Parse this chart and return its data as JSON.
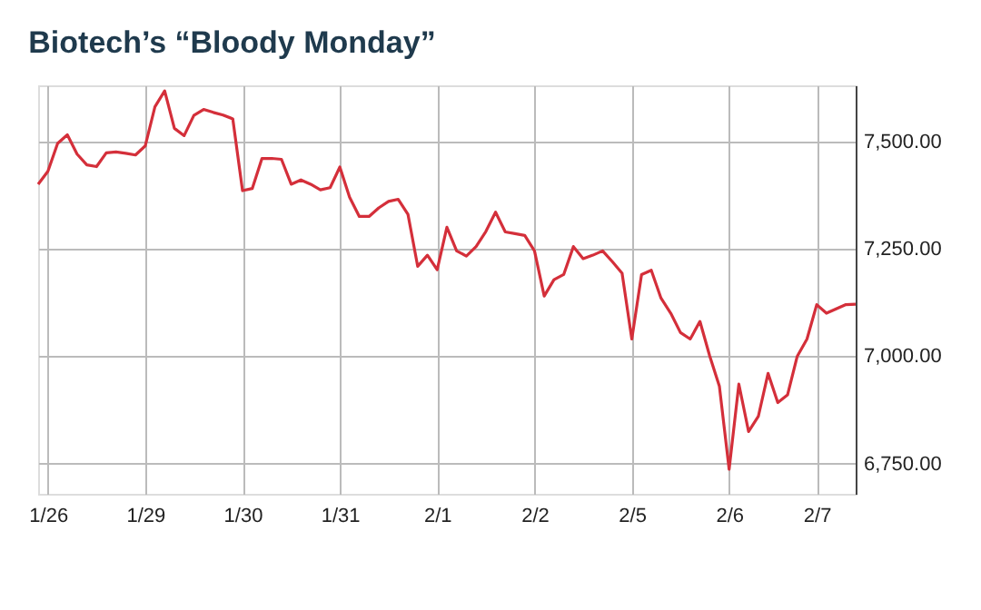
{
  "chart_data": {
    "type": "line",
    "title": "Biotech’s “Bloody Monday”",
    "categories": [
      null,
      "1/26",
      null,
      null,
      null,
      null,
      null,
      null,
      null,
      null,
      null,
      "1/29",
      null,
      null,
      null,
      null,
      null,
      null,
      null,
      null,
      null,
      "1/30",
      null,
      null,
      null,
      null,
      null,
      null,
      null,
      null,
      null,
      "1/31",
      null,
      null,
      null,
      null,
      null,
      null,
      null,
      null,
      null,
      "2/1",
      null,
      null,
      null,
      null,
      null,
      null,
      null,
      null,
      null,
      "2/2",
      null,
      null,
      null,
      null,
      null,
      null,
      null,
      null,
      null,
      "2/5",
      null,
      null,
      null,
      null,
      null,
      null,
      null,
      null,
      null,
      "2/6",
      null,
      null,
      null,
      null,
      null,
      null,
      null,
      null,
      "2/7",
      null,
      null,
      null,
      null
    ],
    "series": [
      {
        "color": "#d42f3a",
        "values": [
          7400,
          7430,
          7495,
          7515,
          7470,
          7445,
          7441,
          7473,
          7475,
          7472,
          7468,
          7489,
          7580,
          7617,
          7530,
          7513,
          7560,
          7574,
          7567,
          7561,
          7552,
          7385,
          7390,
          7460,
          7460,
          7458,
          7400,
          7410,
          7400,
          7387,
          7392,
          7440,
          7370,
          7325,
          7325,
          7345,
          7360,
          7365,
          7330,
          7209,
          7235,
          7201,
          7300,
          7245,
          7233,
          7255,
          7290,
          7335,
          7289,
          7285,
          7281,
          7245,
          7140,
          7178,
          7190,
          7255,
          7227,
          7235,
          7245,
          7220,
          7193,
          7040,
          7190,
          7200,
          7135,
          7100,
          7055,
          7040,
          7081,
          7001,
          6930,
          6737,
          6935,
          6825,
          6860,
          6960,
          6892,
          6910,
          7000,
          7040,
          7120,
          7100,
          7110,
          7120,
          7121
        ]
      }
    ],
    "ylim": [
      6680,
      7630
    ],
    "yticks": [
      {
        "value": 6750,
        "label": "6,750.00"
      },
      {
        "value": 7000,
        "label": "7,000.00"
      },
      {
        "value": 7250,
        "label": "7,250.00"
      },
      {
        "value": 7500,
        "label": "7,500.00"
      }
    ],
    "grid": true,
    "line_style": "solid",
    "marker": "none"
  }
}
